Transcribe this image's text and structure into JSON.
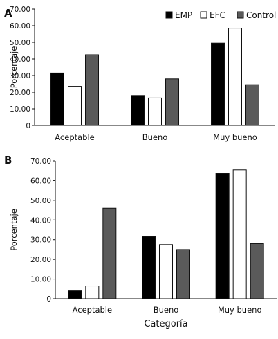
{
  "chart_data": [
    {
      "panel": "A",
      "type": "bar",
      "categories": [
        "Aceptable",
        "Bueno",
        "Muy bueno"
      ],
      "series": [
        {
          "name": "EMP",
          "color": "#000000",
          "values": [
            31.5,
            18.0,
            49.5
          ]
        },
        {
          "name": "EFC",
          "color": "#ffffff",
          "values": [
            23.5,
            16.5,
            58.5
          ]
        },
        {
          "name": "Control",
          "color": "#5a5a5a",
          "values": [
            42.5,
            28.0,
            24.5
          ]
        }
      ],
      "ylabel": "Porcentaje",
      "xlabel": "",
      "ylim": [
        0,
        70
      ],
      "yticks": [
        "0",
        "10.00",
        "20.00",
        "30.00",
        "40.00",
        "50.00",
        "60.00",
        "70.00"
      ],
      "legend": "top-right",
      "grid": false
    },
    {
      "panel": "B",
      "type": "bar",
      "categories": [
        "Aceptable",
        "Bueno",
        "Muy bueno"
      ],
      "series": [
        {
          "name": "EMP",
          "color": "#000000",
          "values": [
            4.0,
            31.5,
            63.5
          ]
        },
        {
          "name": "EFC",
          "color": "#ffffff",
          "values": [
            6.5,
            27.5,
            65.5
          ]
        },
        {
          "name": "Control",
          "color": "#5a5a5a",
          "values": [
            46.0,
            25.0,
            28.0
          ]
        }
      ],
      "ylabel": "Porcentaje",
      "xlabel": "Categoría",
      "ylim": [
        0,
        70
      ],
      "yticks": [
        "0",
        "10.00",
        "20.00",
        "30.00",
        "40.00",
        "50.00",
        "60.00",
        "70.00"
      ],
      "grid": false
    }
  ]
}
